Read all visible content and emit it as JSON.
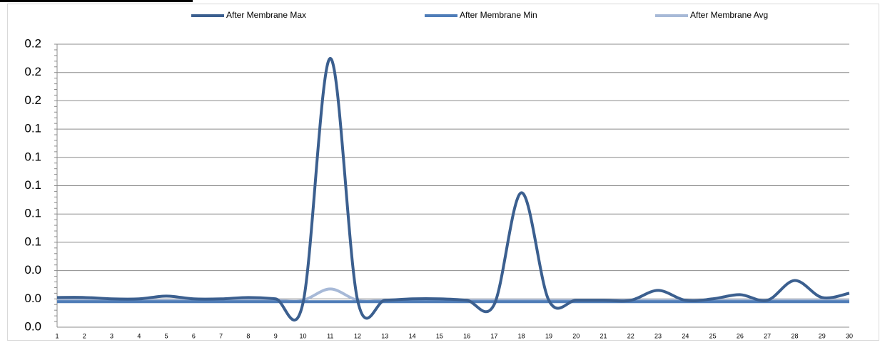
{
  "chart_data": {
    "type": "line",
    "categories": [
      "1",
      "2",
      "3",
      "4",
      "5",
      "6",
      "7",
      "8",
      "9",
      "10",
      "11",
      "12",
      "13",
      "14",
      "15",
      "16",
      "17",
      "18",
      "19",
      "20",
      "21",
      "22",
      "23",
      "24",
      "25",
      "26",
      "27",
      "28",
      "29",
      "30"
    ],
    "series": [
      {
        "name": "After Membrane Max",
        "color": "#3b5f8f",
        "values": [
          0.021,
          0.021,
          0.02,
          0.02,
          0.022,
          0.02,
          0.02,
          0.021,
          0.02,
          0.017,
          0.19,
          0.019,
          0.019,
          0.02,
          0.02,
          0.019,
          0.016,
          0.095,
          0.019,
          0.019,
          0.019,
          0.019,
          0.026,
          0.019,
          0.02,
          0.023,
          0.019,
          0.033,
          0.021,
          0.024
        ]
      },
      {
        "name": "After Membrane Min",
        "color": "#4f7db8",
        "values": [
          0.018,
          0.018,
          0.018,
          0.018,
          0.018,
          0.018,
          0.018,
          0.018,
          0.018,
          0.018,
          0.018,
          0.018,
          0.018,
          0.018,
          0.018,
          0.018,
          0.018,
          0.018,
          0.018,
          0.018,
          0.018,
          0.018,
          0.018,
          0.018,
          0.018,
          0.018,
          0.018,
          0.018,
          0.018,
          0.018
        ]
      },
      {
        "name": "After Membrane Avg",
        "color": "#a7b9d7",
        "values": [
          0.019,
          0.019,
          0.019,
          0.019,
          0.019,
          0.019,
          0.019,
          0.019,
          0.019,
          0.019,
          0.027,
          0.019,
          0.019,
          0.019,
          0.019,
          0.019,
          0.019,
          0.019,
          0.019,
          0.019,
          0.019,
          0.019,
          0.019,
          0.019,
          0.019,
          0.019,
          0.019,
          0.019,
          0.019,
          0.019
        ]
      }
    ],
    "ylim": [
      0,
      0.2
    ],
    "yticks": [
      {
        "value": 0,
        "label": "0.0"
      },
      {
        "value": 0.02,
        "label": "0.0"
      },
      {
        "value": 0.04,
        "label": "0.0"
      },
      {
        "value": 0.06,
        "label": "0.1"
      },
      {
        "value": 0.08,
        "label": "0.1"
      },
      {
        "value": 0.1,
        "label": "0.1"
      },
      {
        "value": 0.12,
        "label": "0.1"
      },
      {
        "value": 0.14,
        "label": "0.1"
      },
      {
        "value": 0.16,
        "label": "0.2"
      },
      {
        "value": 0.18,
        "label": "0.2"
      },
      {
        "value": 0.2,
        "label": "0.2"
      }
    ],
    "grid": true,
    "smooth": true,
    "legend": "top"
  }
}
